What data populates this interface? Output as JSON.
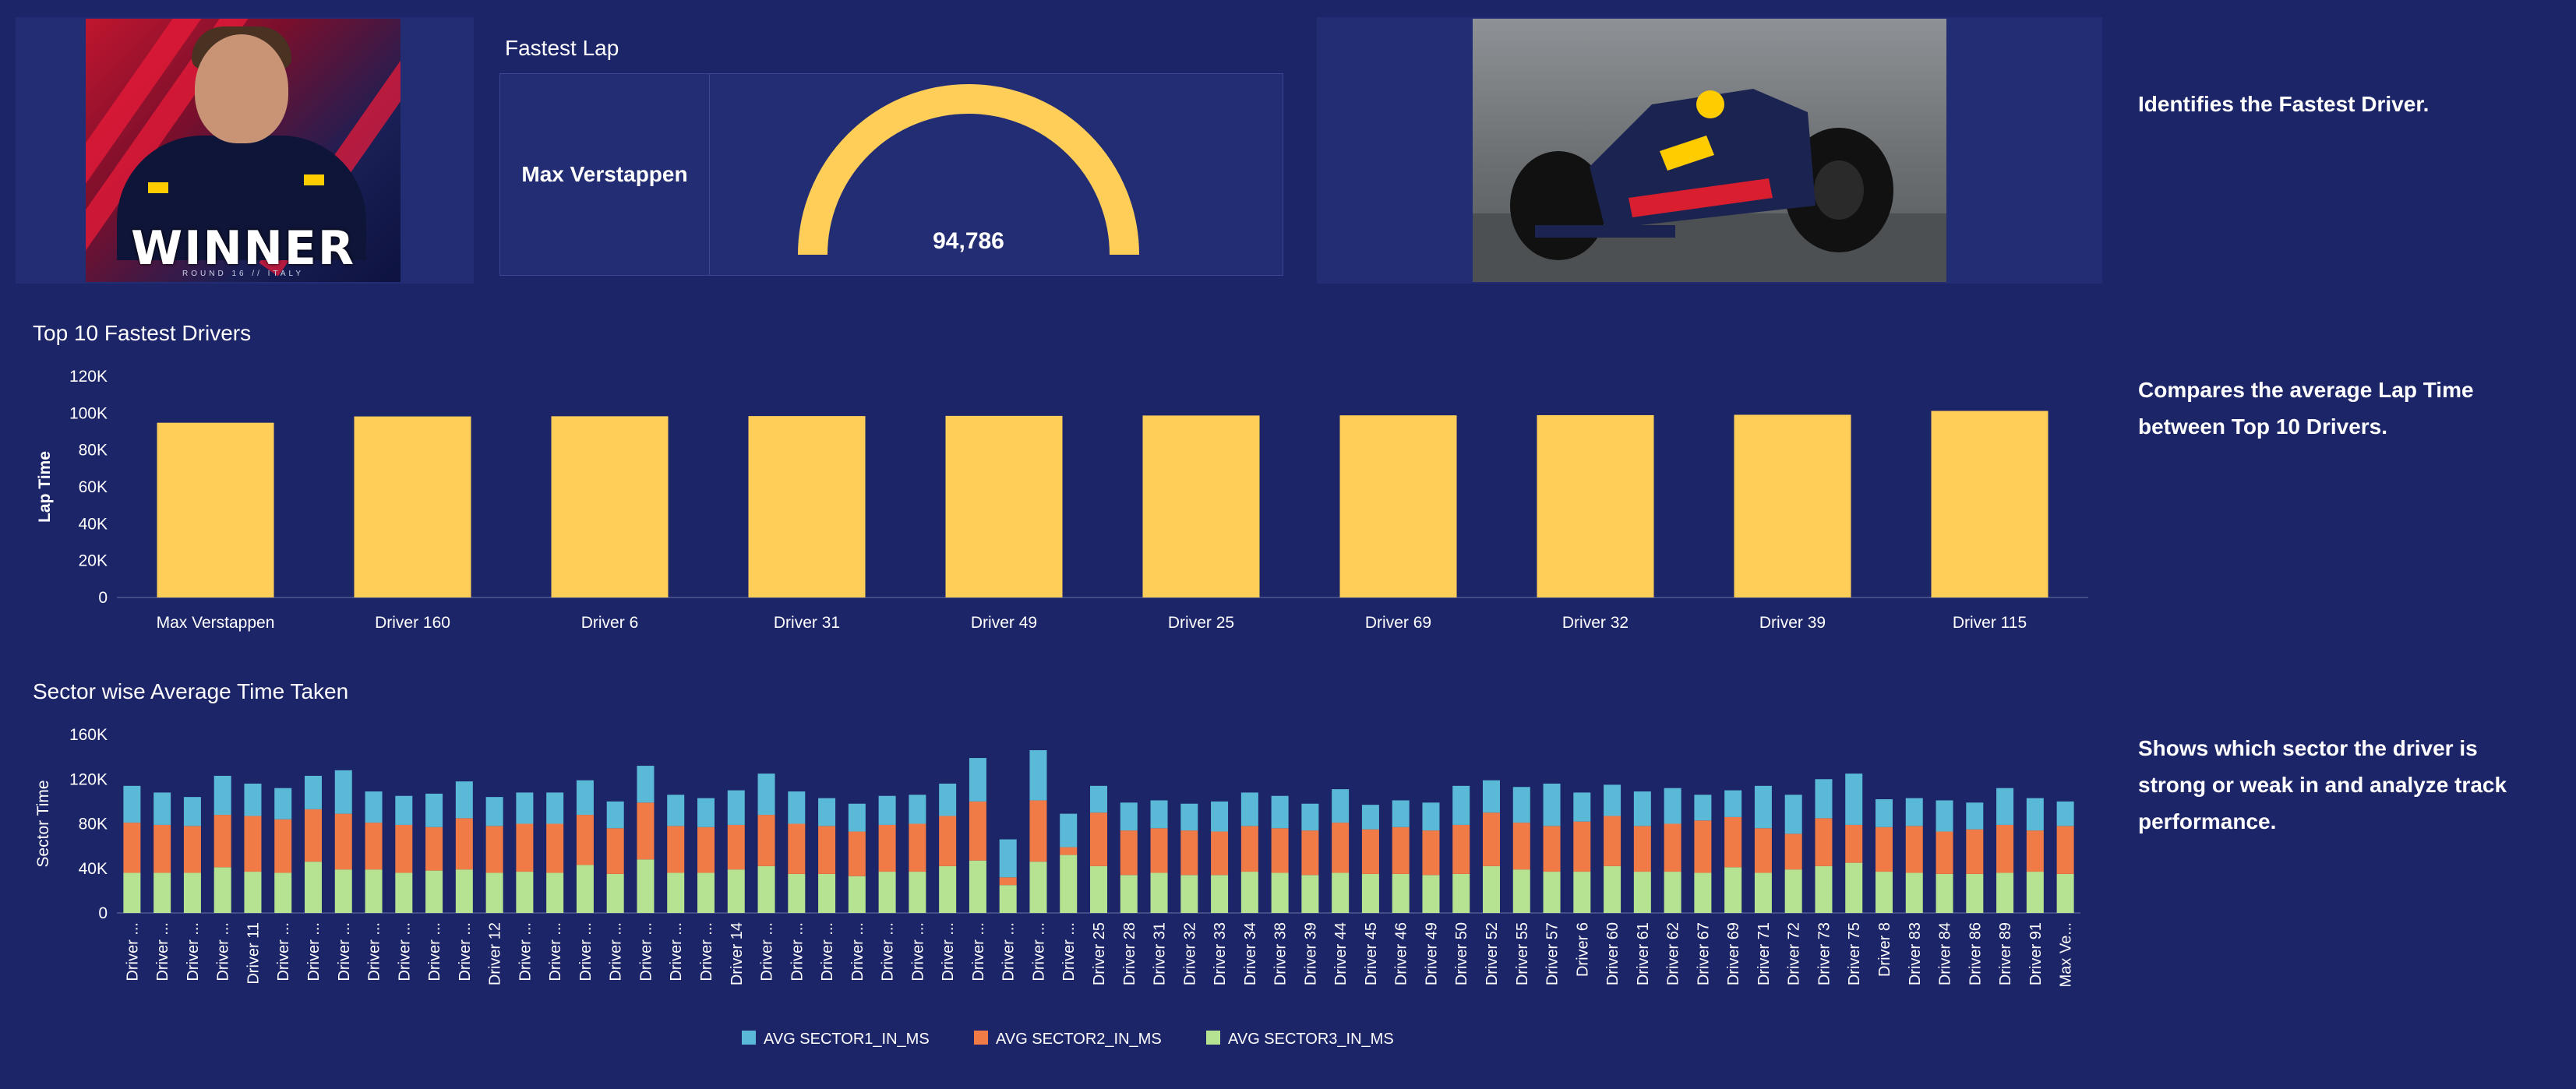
{
  "winner_card": {
    "title": "WINNER",
    "subtitle": "ROUND 16  //  ITALY"
  },
  "fastest_lap": {
    "title": "Fastest Lap",
    "driver": "Max Verstappen",
    "value_label": "94,786",
    "value": 94786,
    "gauge_fill_fraction": 1.0
  },
  "descriptions": {
    "fastest": "Identifies the Fastest Driver.",
    "top10": "Compares the average Lap Time between Top 10 Drivers.",
    "sector": "Shows which sector the driver is strong or weak in and analyze track performance."
  },
  "colors": {
    "background": "#1d2569",
    "bar": "#ffce59",
    "sector1": "#5ab9d6",
    "sector2": "#f07b47",
    "sector3": "#b5e391"
  },
  "chart_data": [
    {
      "type": "bar",
      "title": "Top 10 Fastest Drivers",
      "ylabel": "Lap Time",
      "xlabel": "",
      "ylim": [
        0,
        120000
      ],
      "yticks": [
        "0",
        "20K",
        "40K",
        "60K",
        "80K",
        "100K",
        "120K"
      ],
      "categories": [
        "Max Verstappen",
        "Driver 160",
        "Driver 6",
        "Driver 31",
        "Driver 49",
        "Driver 25",
        "Driver 69",
        "Driver 32",
        "Driver 39",
        "Driver 115"
      ],
      "values": [
        94786,
        98200,
        98300,
        98400,
        98500,
        98700,
        98800,
        98900,
        99100,
        101200
      ],
      "grid": false
    },
    {
      "type": "bar",
      "stacked": true,
      "title": "Sector wise Average Time Taken",
      "ylabel": "Sector Time",
      "xlabel": "",
      "ylim": [
        0,
        160000
      ],
      "yticks": [
        "0",
        "40K",
        "80K",
        "120K",
        "160K"
      ],
      "legend_position": "bottom",
      "categories": [
        "Driver ...",
        "Driver ...",
        "Driver ...",
        "Driver ...",
        "Driver 11",
        "Driver ...",
        "Driver ...",
        "Driver ...",
        "Driver ...",
        "Driver ...",
        "Driver ...",
        "Driver ...",
        "Driver 12",
        "Driver ...",
        "Driver ...",
        "Driver ...",
        "Driver ...",
        "Driver ...",
        "Driver ...",
        "Driver ...",
        "Driver 14",
        "Driver ...",
        "Driver ...",
        "Driver ...",
        "Driver ...",
        "Driver ...",
        "Driver ...",
        "Driver ...",
        "Driver ...",
        "Driver ...",
        "Driver ...",
        "Driver ...",
        "Driver 25",
        "Driver 28",
        "Driver 31",
        "Driver 32",
        "Driver 33",
        "Driver 34",
        "Driver 38",
        "Driver 39",
        "Driver 44",
        "Driver 45",
        "Driver 46",
        "Driver 49",
        "Driver 50",
        "Driver 52",
        "Driver 55",
        "Driver 57",
        "Driver 6",
        "Driver 60",
        "Driver 61",
        "Driver 62",
        "Driver 67",
        "Driver 69",
        "Driver 71",
        "Driver 72",
        "Driver 73",
        "Driver 75",
        "Driver 8",
        "Driver 83",
        "Driver 84",
        "Driver 86",
        "Driver 89",
        "Driver 91",
        "Max Ve..."
      ],
      "series": [
        {
          "name": "AVG SECTOR1_IN_MS",
          "values": [
            33000,
            29000,
            26000,
            35000,
            29000,
            28000,
            30000,
            39000,
            28000,
            26000,
            30000,
            33000,
            26000,
            28000,
            28000,
            31000,
            24000,
            33000,
            28000,
            26000,
            31000,
            37000,
            29000,
            25000,
            25000,
            26000,
            26000,
            29000,
            39000,
            34000,
            45000,
            30000,
            24000,
            25000,
            25000,
            24000,
            27000,
            30000,
            29000,
            24000,
            30000,
            22000,
            24000,
            25000,
            35000,
            29000,
            32000,
            38000,
            26000,
            28000,
            31000,
            32000,
            23000,
            24000,
            38000,
            35000,
            35000,
            46000,
            25000,
            25000,
            28000,
            24000,
            33000,
            29000,
            22000
          ]
        },
        {
          "name": "AVG SECTOR2_IN_MS",
          "values": [
            45000,
            43000,
            42000,
            47000,
            50000,
            48000,
            47000,
            50000,
            42000,
            43000,
            39000,
            46000,
            42000,
            43000,
            44000,
            45000,
            41000,
            51000,
            42000,
            41000,
            40000,
            46000,
            45000,
            43000,
            40000,
            42000,
            43000,
            45000,
            53000,
            7000,
            55000,
            7000,
            48000,
            40000,
            40000,
            40000,
            39000,
            41000,
            40000,
            40000,
            45000,
            40000,
            42000,
            40000,
            44000,
            48000,
            42000,
            41000,
            45000,
            45000,
            41000,
            43000,
            47000,
            45000,
            40000,
            32000,
            43000,
            34000,
            40000,
            42000,
            38000,
            40000,
            43000,
            37000,
            43000
          ],
          "note": ""
        },
        {
          "name": "AVG SECTOR3_IN_MS",
          "values": [
            36000,
            36000,
            36000,
            41000,
            37000,
            36000,
            46000,
            39000,
            39000,
            36000,
            38000,
            39000,
            36000,
            37000,
            36000,
            43000,
            35000,
            48000,
            36000,
            36000,
            39000,
            42000,
            35000,
            35000,
            33000,
            37000,
            37000,
            42000,
            47000,
            25000,
            46000,
            52000,
            42000,
            34000,
            36000,
            34000,
            34000,
            37000,
            36000,
            34000,
            36000,
            35000,
            35000,
            34000,
            35000,
            42000,
            39000,
            37000,
            37000,
            42000,
            37000,
            37000,
            36000,
            41000,
            36000,
            39000,
            42000,
            45000,
            37000,
            36000,
            35000,
            35000,
            36000,
            37000,
            35000
          ]
        }
      ]
    }
  ]
}
